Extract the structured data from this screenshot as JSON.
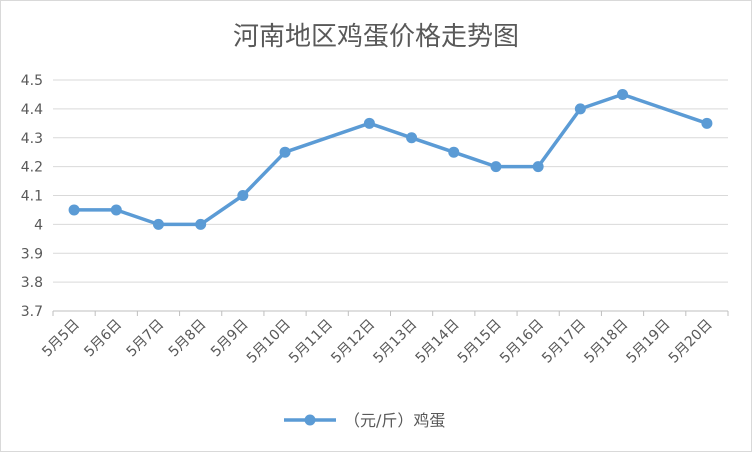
{
  "chart_data": {
    "type": "line",
    "title": "河南地区鸡蛋价格走势图",
    "xlabel": "",
    "ylabel": "",
    "categories": [
      "5月5日",
      "5月6日",
      "5月7日",
      "5月8日",
      "5月9日",
      "5月10日",
      "5月11日",
      "5月12日",
      "5月13日",
      "5月14日",
      "5月15日",
      "5月16日",
      "5月17日",
      "5月18日",
      "5月19日",
      "5月20日"
    ],
    "series": [
      {
        "name": "（元/斤）鸡蛋",
        "color": "#5b9bd5",
        "points": [
          {
            "x": "5月5日",
            "y": 4.05
          },
          {
            "x": "5月6日",
            "y": 4.05
          },
          {
            "x": "5月7日",
            "y": 4.0
          },
          {
            "x": "5月8日",
            "y": 4.0
          },
          {
            "x": "5月9日",
            "y": 4.1
          },
          {
            "x": "5月10日",
            "y": 4.25
          },
          {
            "x": "5月12日",
            "y": 4.35
          },
          {
            "x": "5月13日",
            "y": 4.3
          },
          {
            "x": "5月14日",
            "y": 4.25
          },
          {
            "x": "5月15日",
            "y": 4.2
          },
          {
            "x": "5月16日",
            "y": 4.2
          },
          {
            "x": "5月17日",
            "y": 4.4
          },
          {
            "x": "5月18日",
            "y": 4.45
          },
          {
            "x": "5月20日",
            "y": 4.35
          }
        ]
      }
    ],
    "ylim": [
      3.7,
      4.5
    ],
    "yticks": [
      "3.7",
      "3.8",
      "3.9",
      "4",
      "4.1",
      "4.2",
      "4.3",
      "4.4",
      "4.5"
    ],
    "grid": true,
    "legend_position": "bottom"
  }
}
